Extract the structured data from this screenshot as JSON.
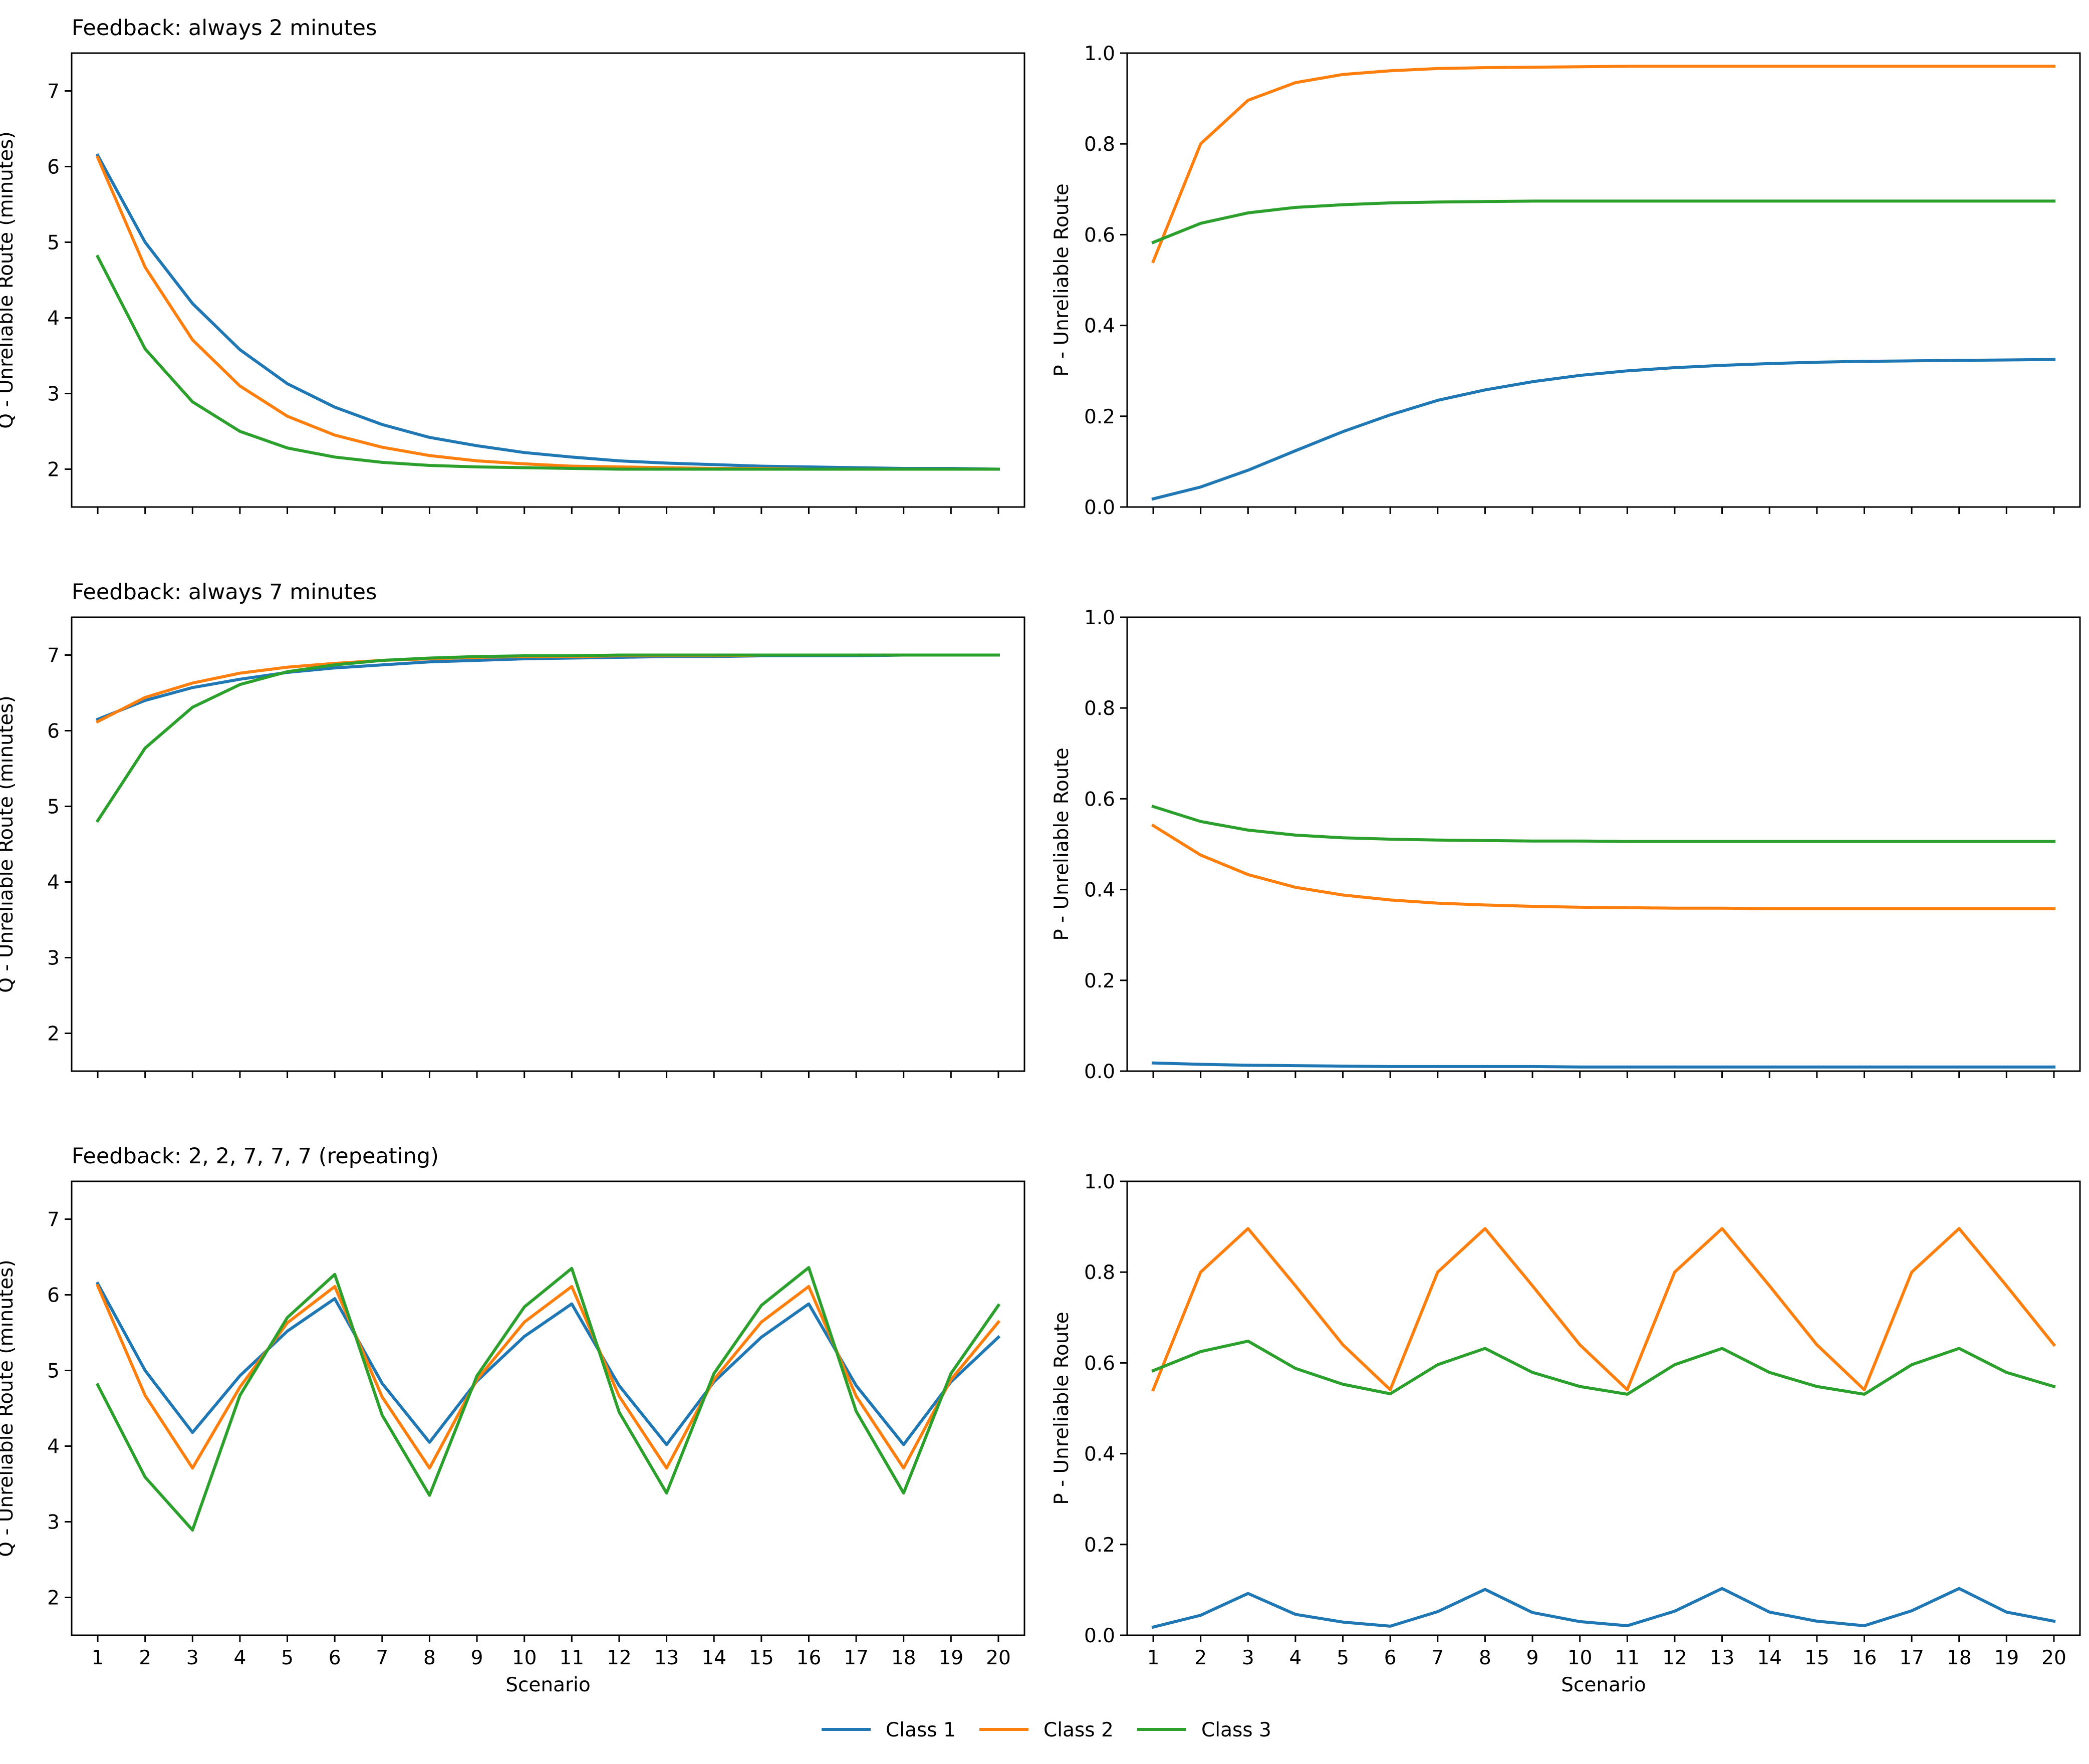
{
  "colors": {
    "class1": "#1f77b4",
    "class2": "#ff7f0e",
    "class3": "#2ca02c",
    "axes": "#000000"
  },
  "legend": {
    "location": "bottom-center",
    "entries": [
      {
        "label": "Class 1",
        "color": "#1f77b4"
      },
      {
        "label": "Class 2",
        "color": "#ff7f0e"
      },
      {
        "label": "Class 3",
        "color": "#2ca02c"
      }
    ]
  },
  "chart_data": [
    {
      "type": "line",
      "title": "Feedback: always 2 minutes",
      "xlabel": "",
      "ylabel": "Q - Unreliable Route (minutes)",
      "xlim": [
        0.45,
        20.55
      ],
      "ylim": [
        1.5,
        7.5
      ],
      "x": [
        1,
        2,
        3,
        4,
        5,
        6,
        7,
        8,
        9,
        10,
        11,
        12,
        13,
        14,
        15,
        16,
        17,
        18,
        19,
        20
      ],
      "yticks": [
        "2",
        "3",
        "4",
        "5",
        "6",
        "7"
      ],
      "xticks": [],
      "grid": false,
      "series": [
        {
          "name": "Class 1",
          "color": "#1f77b4",
          "values": [
            6.15,
            5.0,
            4.19,
            3.58,
            3.13,
            2.82,
            2.59,
            2.42,
            2.31,
            2.22,
            2.16,
            2.11,
            2.08,
            2.06,
            2.04,
            2.03,
            2.02,
            2.01,
            2.01,
            2.0
          ]
        },
        {
          "name": "Class 2",
          "color": "#ff7f0e",
          "values": [
            6.12,
            4.67,
            3.71,
            3.1,
            2.7,
            2.45,
            2.29,
            2.18,
            2.11,
            2.07,
            2.04,
            2.03,
            2.02,
            2.01,
            2.01,
            2.0,
            2.0,
            2.0,
            2.0,
            2.0
          ]
        },
        {
          "name": "Class 3",
          "color": "#2ca02c",
          "values": [
            4.81,
            3.59,
            2.89,
            2.5,
            2.28,
            2.16,
            2.09,
            2.05,
            2.03,
            2.02,
            2.01,
            2.0,
            2.0,
            2.0,
            2.0,
            2.0,
            2.0,
            2.0,
            2.0,
            2.0
          ]
        }
      ]
    },
    {
      "type": "line",
      "title": "",
      "xlabel": "",
      "ylabel": "P - Unreliable Route",
      "xlim": [
        0.45,
        20.55
      ],
      "ylim": [
        0.0,
        1.0
      ],
      "x": [
        1,
        2,
        3,
        4,
        5,
        6,
        7,
        8,
        9,
        10,
        11,
        12,
        13,
        14,
        15,
        16,
        17,
        18,
        19,
        20
      ],
      "yticks": [
        "0.0",
        "0.2",
        "0.4",
        "0.6",
        "0.8",
        "1.0"
      ],
      "xticks": [],
      "grid": false,
      "series": [
        {
          "name": "Class 1",
          "color": "#1f77b4",
          "values": [
            0.018,
            0.044,
            0.081,
            0.124,
            0.166,
            0.203,
            0.235,
            0.258,
            0.276,
            0.29,
            0.3,
            0.307,
            0.312,
            0.316,
            0.319,
            0.321,
            0.322,
            0.323,
            0.324,
            0.325
          ]
        },
        {
          "name": "Class 2",
          "color": "#ff7f0e",
          "values": [
            0.541,
            0.8,
            0.896,
            0.935,
            0.953,
            0.961,
            0.966,
            0.968,
            0.969,
            0.97,
            0.971,
            0.971,
            0.971,
            0.971,
            0.971,
            0.971,
            0.971,
            0.971,
            0.971,
            0.971
          ]
        },
        {
          "name": "Class 3",
          "color": "#2ca02c",
          "values": [
            0.583,
            0.625,
            0.648,
            0.66,
            0.666,
            0.67,
            0.672,
            0.673,
            0.674,
            0.674,
            0.674,
            0.674,
            0.674,
            0.674,
            0.674,
            0.674,
            0.674,
            0.674,
            0.674,
            0.674
          ]
        }
      ]
    },
    {
      "type": "line",
      "title": "Feedback: always 7 minutes",
      "xlabel": "",
      "ylabel": "Q - Unreliable Route (minutes)",
      "xlim": [
        0.45,
        20.55
      ],
      "ylim": [
        1.5,
        7.5
      ],
      "x": [
        1,
        2,
        3,
        4,
        5,
        6,
        7,
        8,
        9,
        10,
        11,
        12,
        13,
        14,
        15,
        16,
        17,
        18,
        19,
        20
      ],
      "yticks": [
        "2",
        "3",
        "4",
        "5",
        "6",
        "7"
      ],
      "xticks": [],
      "grid": false,
      "series": [
        {
          "name": "Class 1",
          "color": "#1f77b4",
          "values": [
            6.15,
            6.4,
            6.57,
            6.68,
            6.77,
            6.83,
            6.87,
            6.91,
            6.93,
            6.95,
            6.96,
            6.97,
            6.98,
            6.98,
            6.99,
            6.99,
            6.99,
            7.0,
            7.0,
            7.0
          ]
        },
        {
          "name": "Class 2",
          "color": "#ff7f0e",
          "values": [
            6.12,
            6.44,
            6.63,
            6.76,
            6.84,
            6.89,
            6.93,
            6.95,
            6.97,
            6.98,
            6.98,
            6.99,
            6.99,
            6.99,
            7.0,
            7.0,
            7.0,
            7.0,
            7.0,
            7.0
          ]
        },
        {
          "name": "Class 3",
          "color": "#2ca02c",
          "values": [
            4.81,
            5.77,
            6.31,
            6.61,
            6.78,
            6.87,
            6.93,
            6.96,
            6.98,
            6.99,
            6.99,
            7.0,
            7.0,
            7.0,
            7.0,
            7.0,
            7.0,
            7.0,
            7.0,
            7.0
          ]
        }
      ]
    },
    {
      "type": "line",
      "title": "",
      "xlabel": "",
      "ylabel": "P - Unreliable Route",
      "xlim": [
        0.45,
        20.55
      ],
      "ylim": [
        0.0,
        1.0
      ],
      "x": [
        1,
        2,
        3,
        4,
        5,
        6,
        7,
        8,
        9,
        10,
        11,
        12,
        13,
        14,
        15,
        16,
        17,
        18,
        19,
        20
      ],
      "yticks": [
        "0.0",
        "0.2",
        "0.4",
        "0.6",
        "0.8",
        "1.0"
      ],
      "xticks": [],
      "grid": false,
      "series": [
        {
          "name": "Class 1",
          "color": "#1f77b4",
          "values": [
            0.018,
            0.015,
            0.013,
            0.012,
            0.011,
            0.01,
            0.01,
            0.01,
            0.01,
            0.009,
            0.009,
            0.009,
            0.009,
            0.009,
            0.009,
            0.009,
            0.009,
            0.009,
            0.009,
            0.009
          ]
        },
        {
          "name": "Class 2",
          "color": "#ff7f0e",
          "values": [
            0.541,
            0.476,
            0.433,
            0.405,
            0.388,
            0.377,
            0.37,
            0.366,
            0.363,
            0.361,
            0.36,
            0.359,
            0.359,
            0.358,
            0.358,
            0.358,
            0.358,
            0.358,
            0.358,
            0.358
          ]
        },
        {
          "name": "Class 3",
          "color": "#2ca02c",
          "values": [
            0.583,
            0.55,
            0.531,
            0.52,
            0.514,
            0.511,
            0.509,
            0.508,
            0.507,
            0.507,
            0.506,
            0.506,
            0.506,
            0.506,
            0.506,
            0.506,
            0.506,
            0.506,
            0.506,
            0.506
          ]
        }
      ]
    },
    {
      "type": "line",
      "title": "Feedback: 2, 2, 7, 7, 7 (repeating)",
      "xlabel": "Scenario",
      "ylabel": "Q - Unreliable Route (minutes)",
      "xlim": [
        0.45,
        20.55
      ],
      "ylim": [
        1.5,
        7.5
      ],
      "x": [
        1,
        2,
        3,
        4,
        5,
        6,
        7,
        8,
        9,
        10,
        11,
        12,
        13,
        14,
        15,
        16,
        17,
        18,
        19,
        20
      ],
      "yticks": [
        "2",
        "3",
        "4",
        "5",
        "6",
        "7"
      ],
      "xticks": [
        "1",
        "2",
        "3",
        "4",
        "5",
        "6",
        "7",
        "8",
        "9",
        "10",
        "11",
        "12",
        "13",
        "14",
        "15",
        "16",
        "17",
        "18",
        "19",
        "20"
      ],
      "grid": false,
      "series": [
        {
          "name": "Class 1",
          "color": "#1f77b4",
          "values": [
            6.15,
            5.0,
            4.18,
            4.93,
            5.52,
            5.95,
            4.83,
            4.05,
            4.86,
            5.45,
            5.88,
            4.8,
            4.02,
            4.85,
            5.44,
            5.88,
            4.8,
            4.02,
            4.85,
            5.44
          ]
        },
        {
          "name": "Class 2",
          "color": "#ff7f0e",
          "values": [
            6.12,
            4.67,
            3.71,
            4.78,
            5.63,
            6.11,
            4.65,
            3.71,
            4.88,
            5.64,
            6.11,
            4.66,
            3.71,
            4.88,
            5.64,
            6.11,
            4.66,
            3.71,
            4.88,
            5.64
          ]
        },
        {
          "name": "Class 3",
          "color": "#2ca02c",
          "values": [
            4.81,
            3.59,
            2.89,
            4.67,
            5.7,
            6.27,
            4.41,
            3.35,
            4.93,
            5.84,
            6.35,
            4.45,
            3.38,
            4.96,
            5.86,
            6.36,
            4.46,
            3.38,
            4.96,
            5.86
          ]
        }
      ]
    },
    {
      "type": "line",
      "title": "",
      "xlabel": "Scenario",
      "ylabel": "P - Unreliable Route",
      "xlim": [
        0.45,
        20.55
      ],
      "ylim": [
        0.0,
        1.0
      ],
      "x": [
        1,
        2,
        3,
        4,
        5,
        6,
        7,
        8,
        9,
        10,
        11,
        12,
        13,
        14,
        15,
        16,
        17,
        18,
        19,
        20
      ],
      "yticks": [
        "0.0",
        "0.2",
        "0.4",
        "0.6",
        "0.8",
        "1.0"
      ],
      "xticks": [
        "1",
        "2",
        "3",
        "4",
        "5",
        "6",
        "7",
        "8",
        "9",
        "10",
        "11",
        "12",
        "13",
        "14",
        "15",
        "16",
        "17",
        "18",
        "19",
        "20"
      ],
      "grid": false,
      "series": [
        {
          "name": "Class 1",
          "color": "#1f77b4",
          "values": [
            0.018,
            0.044,
            0.092,
            0.046,
            0.029,
            0.02,
            0.052,
            0.101,
            0.05,
            0.03,
            0.021,
            0.053,
            0.103,
            0.051,
            0.031,
            0.021,
            0.054,
            0.103,
            0.051,
            0.031
          ]
        },
        {
          "name": "Class 2",
          "color": "#ff7f0e",
          "values": [
            0.541,
            0.8,
            0.896,
            0.77,
            0.64,
            0.541,
            0.8,
            0.896,
            0.77,
            0.64,
            0.541,
            0.8,
            0.896,
            0.77,
            0.64,
            0.541,
            0.8,
            0.896,
            0.77,
            0.64
          ]
        },
        {
          "name": "Class 3",
          "color": "#2ca02c",
          "values": [
            0.583,
            0.625,
            0.648,
            0.588,
            0.553,
            0.532,
            0.596,
            0.632,
            0.579,
            0.548,
            0.531,
            0.596,
            0.632,
            0.579,
            0.548,
            0.531,
            0.596,
            0.632,
            0.579,
            0.548
          ]
        }
      ]
    }
  ]
}
